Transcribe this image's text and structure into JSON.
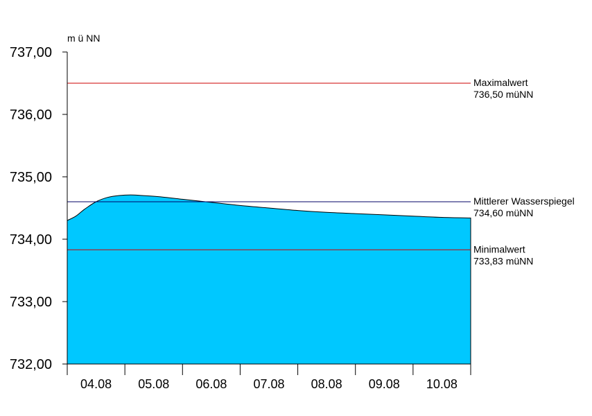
{
  "chart_data": {
    "type": "area",
    "ylabel": "m ü NN",
    "ylim": [
      732,
      737
    ],
    "yticks": [
      732,
      733,
      734,
      735,
      736,
      737
    ],
    "ytick_labels": [
      "732,00",
      "733,00",
      "734,00",
      "735,00",
      "736,00",
      "737,00"
    ],
    "categories": [
      "04.08",
      "05.08",
      "06.08",
      "07.08",
      "08.08",
      "09.08",
      "10.08"
    ],
    "grid": false,
    "series": [
      {
        "color": "#00c8ff",
        "x": [
          0,
          0.15,
          0.3,
          0.5,
          0.7,
          0.9,
          1.1,
          1.3,
          1.6,
          2.0,
          2.5,
          3.0,
          3.5,
          4.0,
          4.5,
          5.0,
          5.5,
          6.0,
          6.5,
          7.0
        ],
        "values": [
          734.3,
          734.37,
          734.48,
          734.6,
          734.67,
          734.7,
          734.71,
          734.7,
          734.68,
          734.64,
          734.59,
          734.54,
          734.5,
          734.46,
          734.43,
          734.41,
          734.39,
          734.37,
          734.35,
          734.34
        ]
      }
    ],
    "reference_lines": [
      {
        "name": "Maximalwert",
        "value_text": "736,50 müNN",
        "value": 736.5,
        "color": "#cc0000"
      },
      {
        "name": "Mittlerer Wasserspiegel",
        "value_text": "734,60 müNN",
        "value": 734.6,
        "color": "#000066"
      },
      {
        "name": "Minimalwert",
        "value_text": "733,83 müNN",
        "value": 733.83,
        "color": "#cc0000"
      }
    ]
  }
}
